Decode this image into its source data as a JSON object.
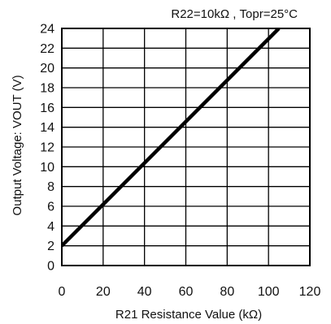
{
  "chart_data": {
    "type": "line",
    "title": "R22=10kΩ , Topr=25°C",
    "xlabel": "R21 Resistance Value (kΩ)",
    "ylabel": "Output Voltage: VOUT (V)",
    "xlim": [
      0,
      120
    ],
    "ylim": [
      0,
      24
    ],
    "xticks": [
      0,
      20,
      40,
      60,
      80,
      100,
      120
    ],
    "yticks": [
      0,
      2,
      4,
      6,
      8,
      10,
      12,
      14,
      16,
      18,
      20,
      22,
      24
    ],
    "grid": true,
    "series": [
      {
        "x": [
          0,
          105
        ],
        "y": [
          2,
          24
        ],
        "color": "#000000"
      }
    ]
  }
}
